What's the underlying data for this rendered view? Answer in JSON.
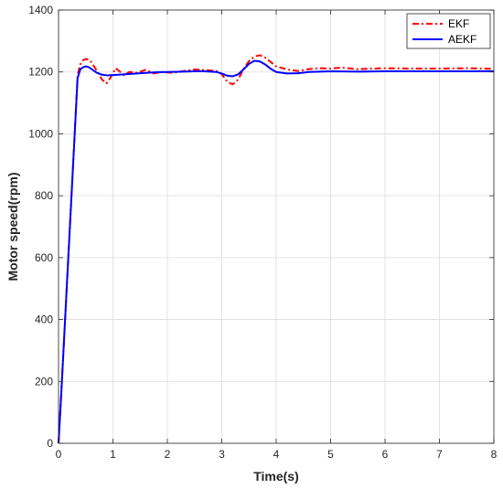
{
  "chart_data": {
    "type": "line",
    "title": "",
    "xlabel": "Time(s)",
    "ylabel": "Motor speed(rpm)",
    "xlim": [
      0,
      8
    ],
    "ylim": [
      0,
      1400
    ],
    "xticks": [
      0,
      1,
      2,
      3,
      4,
      5,
      6,
      7,
      8
    ],
    "yticks": [
      0,
      200,
      400,
      600,
      800,
      1000,
      1200,
      1400
    ],
    "grid": true,
    "legend_position": "top-right",
    "series": [
      {
        "name": "EKF",
        "color": "#ff0000",
        "style": "dash-dot",
        "x": [
          0,
          0.05,
          0.1,
          0.15,
          0.2,
          0.25,
          0.3,
          0.35,
          0.4,
          0.45,
          0.5,
          0.55,
          0.6,
          0.7,
          0.8,
          0.88,
          0.95,
          1.05,
          1.1,
          1.2,
          1.3,
          1.45,
          1.6,
          1.75,
          1.9,
          2.1,
          2.3,
          2.5,
          2.7,
          2.9,
          3.0,
          3.1,
          3.2,
          3.3,
          3.4,
          3.5,
          3.6,
          3.7,
          3.8,
          3.9,
          4.0,
          4.2,
          4.4,
          4.6,
          4.8,
          5.0,
          5.2,
          5.5,
          6.0,
          6.5,
          7.0,
          7.5,
          8.0
        ],
        "y": [
          0,
          160,
          330,
          500,
          670,
          840,
          1010,
          1190,
          1225,
          1238,
          1242,
          1240,
          1232,
          1205,
          1175,
          1163,
          1180,
          1212,
          1205,
          1190,
          1200,
          1197,
          1207,
          1195,
          1200,
          1197,
          1203,
          1208,
          1206,
          1203,
          1193,
          1168,
          1160,
          1175,
          1210,
          1235,
          1250,
          1254,
          1246,
          1232,
          1218,
          1208,
          1203,
          1209,
          1212,
          1211,
          1214,
          1209,
          1212,
          1211,
          1211,
          1212,
          1210
        ]
      },
      {
        "name": "AEKF",
        "color": "#0000ff",
        "style": "solid",
        "x": [
          0,
          0.05,
          0.1,
          0.15,
          0.2,
          0.25,
          0.3,
          0.35,
          0.4,
          0.45,
          0.5,
          0.55,
          0.6,
          0.7,
          0.8,
          0.9,
          1.0,
          1.2,
          1.5,
          1.8,
          2.0,
          2.3,
          2.6,
          2.9,
          3.0,
          3.1,
          3.2,
          3.3,
          3.4,
          3.5,
          3.6,
          3.7,
          3.8,
          3.9,
          4.0,
          4.2,
          4.4,
          4.6,
          5.0,
          5.5,
          6.0,
          7.0,
          8.0
        ],
        "y": [
          0,
          160,
          330,
          500,
          670,
          840,
          1010,
          1180,
          1208,
          1215,
          1218,
          1216,
          1210,
          1198,
          1191,
          1189,
          1190,
          1192,
          1196,
          1199,
          1200,
          1201,
          1203,
          1200,
          1195,
          1188,
          1186,
          1192,
          1208,
          1226,
          1236,
          1234,
          1224,
          1210,
          1200,
          1195,
          1196,
          1200,
          1202,
          1201,
          1202,
          1202,
          1202
        ]
      }
    ]
  }
}
